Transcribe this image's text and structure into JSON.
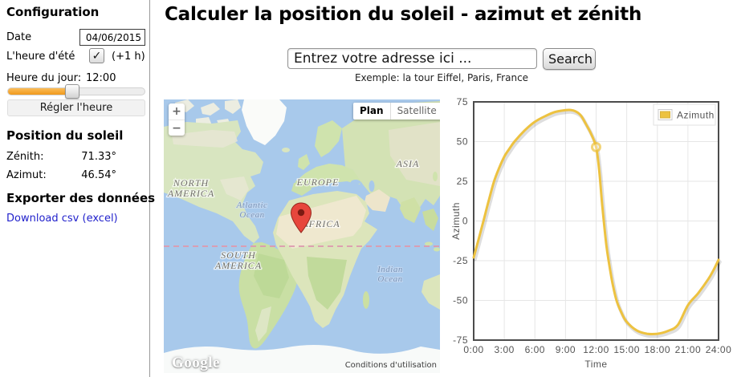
{
  "header": {
    "title": "Calculer la position du soleil - azimut et zénith"
  },
  "search": {
    "value": "Entrez votre adresse ici ...",
    "button_label": "Search",
    "example": "Exemple: la tour Eiffel, Paris, France"
  },
  "sidebar": {
    "heading": "Configuration",
    "date_label": "Date",
    "date_value": "04/06/2015",
    "dst_label": "L'heure d'été",
    "dst_check_glyph": "✓",
    "dst_suffix": "(+1 h)",
    "hour_label": "Heure du jour:",
    "hour_value": "12:00",
    "set_time_button": "Régler l'heure",
    "position_heading": "Position du soleil",
    "zenith_label": "Zénith:",
    "zenith_value": "71.33°",
    "azimuth_label": "Azimut:",
    "azimuth_value": "46.54°",
    "export_heading": "Exporter des données",
    "download_link": "Download csv (excel)"
  },
  "map": {
    "zoom_in": "+",
    "zoom_out": "−",
    "type_plan": "Plan",
    "type_satellite": "Satellite",
    "logo": "Google",
    "attribution": "Conditions d'utilisation",
    "labels": {
      "north": "NORTH",
      "america_n": "AMERICA",
      "south": "SOUTH",
      "america_s": "AMERICA",
      "europe": "EUROPE",
      "africa": "AFRICA",
      "asia": "ASIA",
      "atlantic_1": "Atlantic",
      "atlantic_2": "Ocean",
      "indian_1": "Indian",
      "indian_2": "Ocean"
    }
  },
  "chart_data": {
    "type": "line",
    "xlabel": "Time",
    "ylabel": "Azimuth",
    "legend": [
      "Azimuth"
    ],
    "legend_position": "top-right",
    "grid": true,
    "series_color": "#EDC240",
    "xlim": [
      0,
      24
    ],
    "ylim": [
      -75,
      75
    ],
    "x_ticks": [
      "0:00",
      "3:00",
      "6:00",
      "9:00",
      "12:00",
      "15:00",
      "18:00",
      "21:00",
      "24:00"
    ],
    "y_ticks": [
      75,
      50,
      25,
      0,
      -25,
      -50,
      -75
    ],
    "series": [
      {
        "name": "Azimuth",
        "points": [
          [
            0,
            -23
          ],
          [
            0.5,
            -11
          ],
          [
            1,
            1
          ],
          [
            1.5,
            13.5
          ],
          [
            2,
            25
          ],
          [
            2.5,
            33.5
          ],
          [
            3,
            40.5
          ],
          [
            3.5,
            45.5
          ],
          [
            4,
            50
          ],
          [
            5,
            57
          ],
          [
            6,
            62.5
          ],
          [
            7,
            66
          ],
          [
            8,
            68.7
          ],
          [
            9,
            69.8
          ],
          [
            9.5,
            69.9
          ],
          [
            10,
            69
          ],
          [
            10.5,
            66.5
          ],
          [
            11,
            61
          ],
          [
            11.5,
            55
          ],
          [
            12,
            46.54
          ],
          [
            12.3,
            32
          ],
          [
            12.6,
            10
          ],
          [
            13,
            -15
          ],
          [
            13.3,
            -28
          ],
          [
            13.6,
            -39
          ],
          [
            14,
            -50
          ],
          [
            14.5,
            -58
          ],
          [
            15,
            -63.5
          ],
          [
            16,
            -69
          ],
          [
            17,
            -71
          ],
          [
            18,
            -71
          ],
          [
            19,
            -69.3
          ],
          [
            20,
            -65.5
          ],
          [
            21,
            -53
          ],
          [
            22,
            -45.5
          ],
          [
            23,
            -36.5
          ],
          [
            23.5,
            -31
          ],
          [
            24,
            -24.5
          ]
        ]
      }
    ],
    "highlight_point": {
      "x": 12,
      "y": 46.54
    }
  }
}
